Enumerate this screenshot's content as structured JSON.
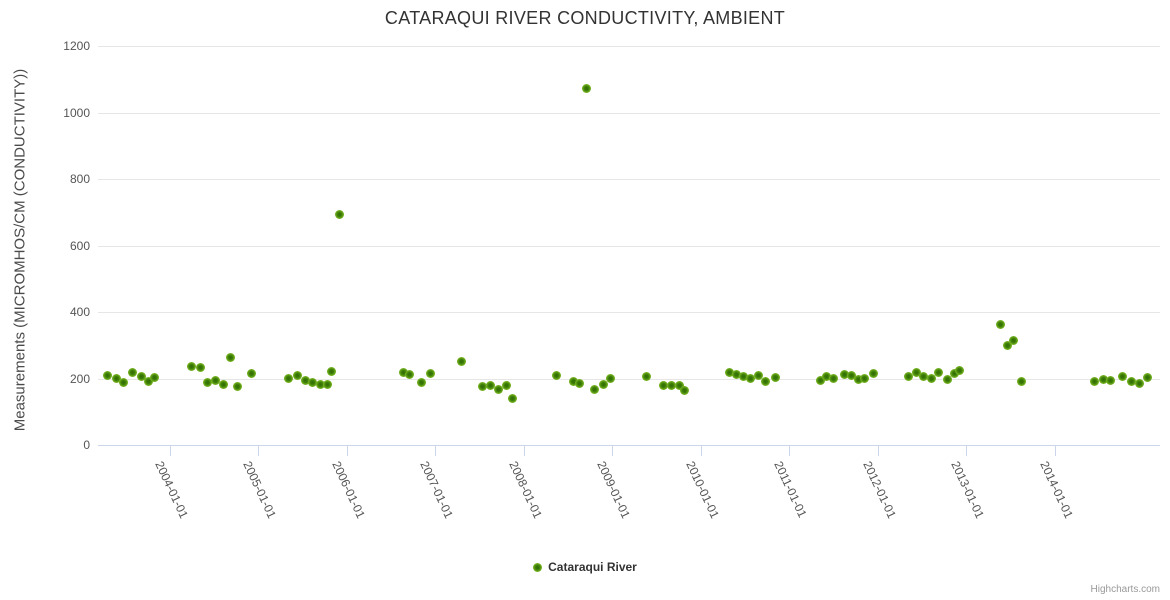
{
  "header": {
    "title": "CATARAQUI RIVER CONDUCTIVITY, AMBIENT"
  },
  "legend": {
    "label": "Cataraqui River"
  },
  "credits": {
    "label": "Highcharts.com"
  },
  "colors": {
    "marker_center": "#2f6d04",
    "marker_edge": "#8dc63f",
    "gridline": "#e6e6e6",
    "axis_line": "#ccd6eb",
    "tick_label": "#555555",
    "title": "#333333",
    "credits": "#999999"
  },
  "chart_data": {
    "type": "scatter",
    "title": "CATARAQUI RIVER CONDUCTIVITY, AMBIENT",
    "xlabel": "",
    "ylabel": "Measurements (MICROMHOS/CM (CONDUCTIVITY))",
    "legend_position": "bottom",
    "grid": true,
    "xlim": [
      2003.19,
      2015.19
    ],
    "ylim": [
      0,
      1200
    ],
    "y_ticks": [
      0,
      200,
      400,
      600,
      800,
      1000,
      1200
    ],
    "x_tick_values": [
      2004,
      2005,
      2006,
      2007,
      2008,
      2009,
      2010,
      2011,
      2012,
      2013,
      2014
    ],
    "x_tick_labels": [
      "2004-01-01",
      "2005-01-01",
      "2006-01-01",
      "2007-01-01",
      "2008-01-01",
      "2009-01-01",
      "2010-01-01",
      "2011-01-01",
      "2012-01-01",
      "2013-01-01",
      "2014-01-01"
    ],
    "series": [
      {
        "name": "Cataraqui River",
        "points": [
          [
            2003.3,
            209
          ],
          [
            2003.4,
            201
          ],
          [
            2003.48,
            189
          ],
          [
            2003.58,
            219
          ],
          [
            2003.68,
            207
          ],
          [
            2003.76,
            191
          ],
          [
            2003.83,
            203
          ],
          [
            2004.25,
            237
          ],
          [
            2004.35,
            232
          ],
          [
            2004.43,
            189
          ],
          [
            2004.52,
            194
          ],
          [
            2004.61,
            181
          ],
          [
            2004.69,
            264
          ],
          [
            2004.77,
            176
          ],
          [
            2004.92,
            214
          ],
          [
            2005.34,
            199
          ],
          [
            2005.44,
            209
          ],
          [
            2005.53,
            194
          ],
          [
            2005.61,
            189
          ],
          [
            2005.7,
            181
          ],
          [
            2005.78,
            181
          ],
          [
            2005.83,
            222
          ],
          [
            2005.92,
            693
          ],
          [
            2006.64,
            219
          ],
          [
            2006.71,
            211
          ],
          [
            2006.84,
            189
          ],
          [
            2006.95,
            216
          ],
          [
            2007.3,
            252
          ],
          [
            2007.54,
            176
          ],
          [
            2007.63,
            179
          ],
          [
            2007.71,
            167
          ],
          [
            2007.81,
            179
          ],
          [
            2007.87,
            139
          ],
          [
            2008.37,
            209
          ],
          [
            2008.56,
            191
          ],
          [
            2008.63,
            184
          ],
          [
            2008.71,
            1072
          ],
          [
            2008.8,
            167
          ],
          [
            2008.9,
            181
          ],
          [
            2008.98,
            201
          ],
          [
            2009.39,
            206
          ],
          [
            2009.58,
            179
          ],
          [
            2009.67,
            179
          ],
          [
            2009.76,
            179
          ],
          [
            2009.82,
            164
          ],
          [
            2010.32,
            219
          ],
          [
            2010.4,
            211
          ],
          [
            2010.48,
            206
          ],
          [
            2010.56,
            199
          ],
          [
            2010.65,
            209
          ],
          [
            2010.73,
            191
          ],
          [
            2010.84,
            204
          ],
          [
            2011.35,
            194
          ],
          [
            2011.42,
            207
          ],
          [
            2011.5,
            199
          ],
          [
            2011.62,
            211
          ],
          [
            2011.7,
            209
          ],
          [
            2011.78,
            197
          ],
          [
            2011.85,
            201
          ],
          [
            2011.95,
            214
          ],
          [
            2012.35,
            207
          ],
          [
            2012.44,
            219
          ],
          [
            2012.52,
            207
          ],
          [
            2012.61,
            199
          ],
          [
            2012.69,
            217
          ],
          [
            2012.79,
            197
          ],
          [
            2012.87,
            214
          ],
          [
            2012.93,
            224
          ],
          [
            2013.39,
            362
          ],
          [
            2013.47,
            298
          ],
          [
            2013.53,
            315
          ],
          [
            2013.63,
            190
          ],
          [
            2014.45,
            192
          ],
          [
            2014.55,
            198
          ],
          [
            2014.63,
            193
          ],
          [
            2014.77,
            205
          ],
          [
            2014.87,
            190
          ],
          [
            2014.96,
            185
          ],
          [
            2015.05,
            203
          ]
        ]
      }
    ]
  }
}
